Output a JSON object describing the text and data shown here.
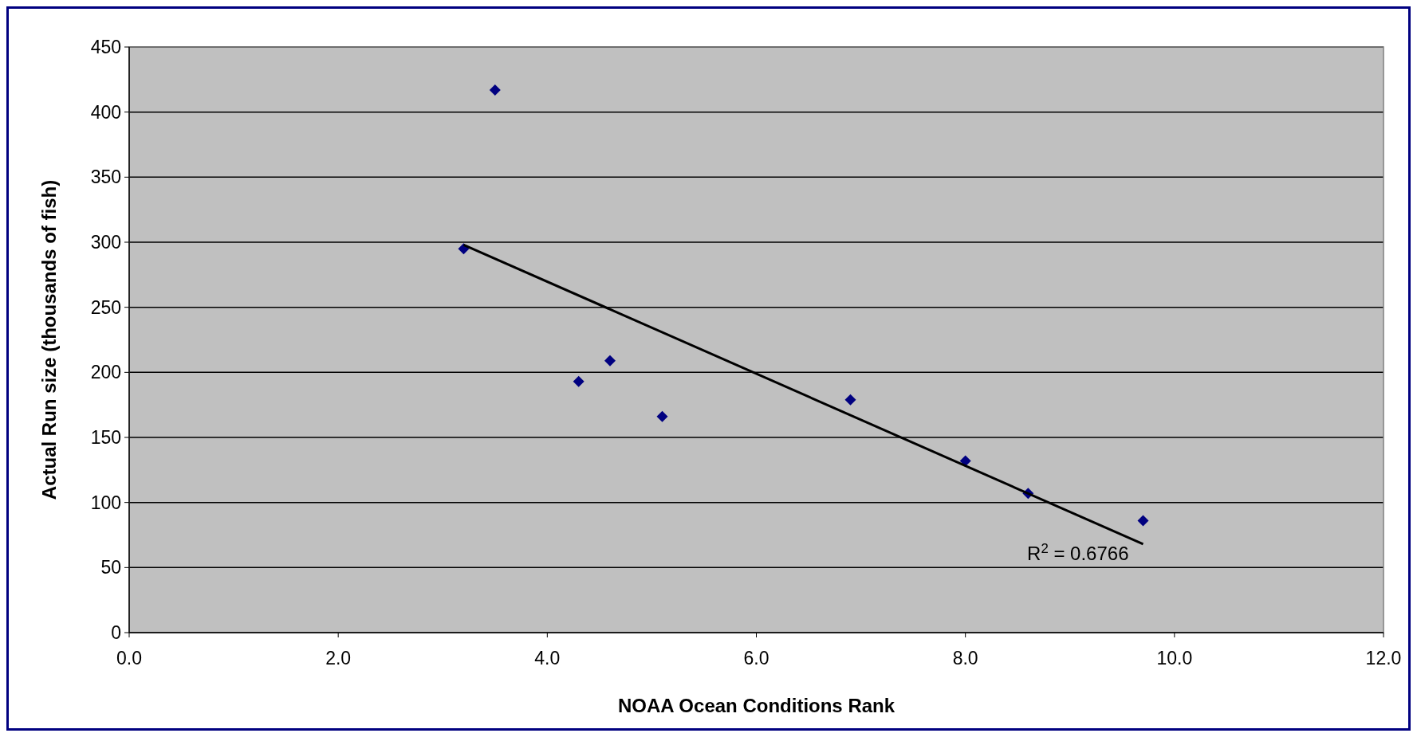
{
  "chart_data": {
    "type": "scatter",
    "xlabel": "NOAA Ocean Conditions Rank",
    "ylabel": "Actual Run size (thousands of fish)",
    "xlim": [
      0,
      12
    ],
    "xticks": [
      {
        "value": 0,
        "label": "0.0"
      },
      {
        "value": 2,
        "label": "2.0"
      },
      {
        "value": 4,
        "label": "4.0"
      },
      {
        "value": 6,
        "label": "6.0"
      },
      {
        "value": 8,
        "label": "8.0"
      },
      {
        "value": 10,
        "label": "10.0"
      },
      {
        "value": 12,
        "label": "12.0"
      }
    ],
    "ylim": [
      0,
      450
    ],
    "yticks": [
      0,
      50,
      100,
      150,
      200,
      250,
      300,
      350,
      400,
      450
    ],
    "grid": "y",
    "series": [
      {
        "color": "#000080",
        "marker": "diamond",
        "x": [
          3.2,
          3.5,
          4.3,
          4.6,
          5.1,
          6.9,
          8.0,
          8.6,
          9.7
        ],
        "values": [
          295,
          417,
          193,
          209,
          166,
          179,
          132,
          107,
          86
        ]
      },
      {
        "type": "line",
        "color": "#000000",
        "marker": "none",
        "line_style": "solid",
        "x": [
          3.2,
          9.7
        ],
        "values": [
          298,
          68
        ]
      }
    ],
    "annotations": [
      {
        "text": "R$^{2}$ = 0.6766",
        "x": 9.7,
        "y": 68
      }
    ]
  }
}
